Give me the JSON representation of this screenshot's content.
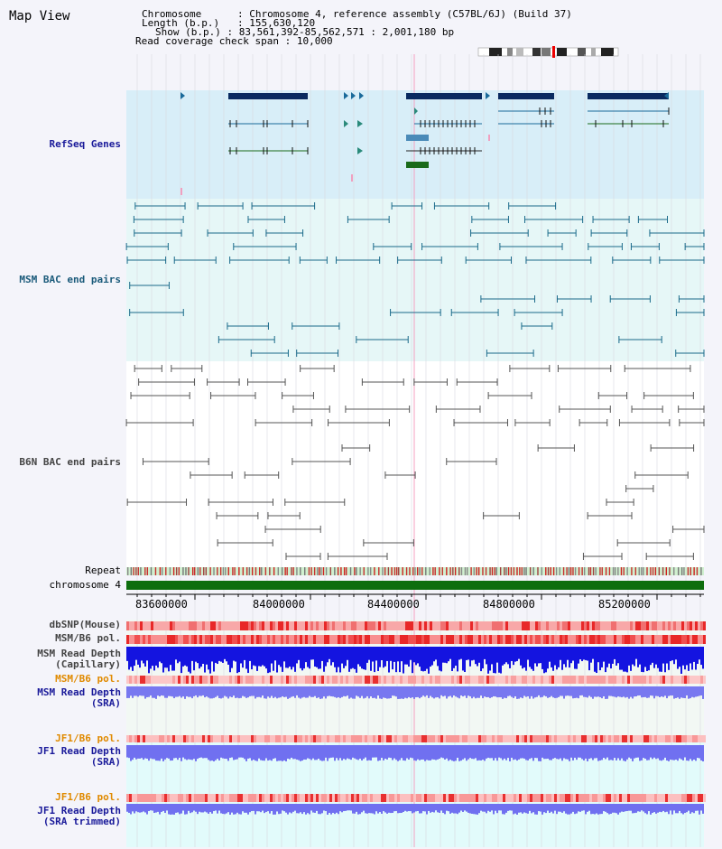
{
  "title": "Map View",
  "info": {
    "chromosome_label": "Chromosome",
    "chromosome_value": "Chromosome 4, reference assembly (C57BL/6J) (Build 37)",
    "length_label": "Length (b.p.)",
    "length_value": "155,630,120",
    "show_label": "Show (b.p.)",
    "show_value": "83,561,392-85,562,571 : 2,001,180 bp",
    "span_label": "Read coverage check span",
    "span_value": "10,000"
  },
  "tracks": {
    "refseq": "RefSeq Genes",
    "msm_bac": "MSM BAC end pairs",
    "b6n_bac": "B6N BAC end pairs",
    "repeat": "Repeat",
    "chromosome": "chromosome 4",
    "dbsnp": "dbSNP(Mouse)",
    "msm_b6_pol": "MSM/B6 pol.",
    "msm_depth_cap_1": "MSM Read Depth",
    "msm_depth_cap_2": "(Capillary)",
    "msm_b6_pol2": "MSM/B6 pol.",
    "msm_depth_sra_1": "MSM Read Depth",
    "msm_depth_sra_2": "(SRA)",
    "jf1_b6_pol": "JF1/B6 pol.",
    "jf1_depth_1": "JF1 Read Depth",
    "jf1_depth_2": "(SRA)",
    "jf1_b6_pol2": "JF1/B6 pol.",
    "jf1_trim_1": "JF1 Read Depth",
    "jf1_trim_2": "(SRA trimmed)"
  },
  "axis_ticks": [
    "83600000",
    "84000000",
    "84400000",
    "84800000",
    "85200000"
  ],
  "colors": {
    "refseq_bg": "#d8eef8",
    "bac_bg": "#e8f8f8",
    "gene_dark": "#0a2a60",
    "gene_green": "#1a6a1a",
    "msm_line": "#1a6a8a",
    "b6n_line": "#555555",
    "chromosome_bar": "#0e6e0e",
    "depth_blue": "#1414e0",
    "depth_light": "#7878f0",
    "pol_red": "#e83030"
  }
}
